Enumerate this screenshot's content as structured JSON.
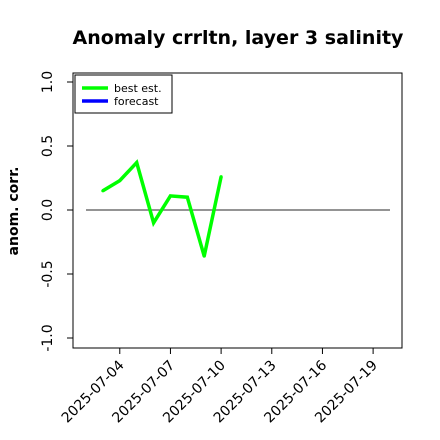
{
  "chart_data": {
    "type": "line",
    "title": "Anomaly crrltn, layer 3 salinity",
    "ylabel": "anom. corr.",
    "xlabel": "",
    "ylim": [
      -1.0,
      1.0
    ],
    "yticks": [
      -1.0,
      -0.5,
      0.0,
      0.5,
      1.0
    ],
    "ytick_labels": [
      "-1.0",
      "-0.5",
      "0.0",
      "0.5",
      "1.0"
    ],
    "xlim": [
      "2025-07-02",
      "2025-07-20"
    ],
    "xticks": [
      "2025-07-04",
      "2025-07-07",
      "2025-07-10",
      "2025-07-13",
      "2025-07-16",
      "2025-07-19"
    ],
    "xtick_labels": [
      "2025-07-04",
      "2025-07-07",
      "2025-07-10",
      "2025-07-13",
      "2025-07-16",
      "2025-07-19"
    ],
    "highlighted_xtick": "2025-07-10",
    "zero_line": true,
    "grid": false,
    "legend_position": "upper-left",
    "series": [
      {
        "name": "best est.",
        "color": "#00ff00",
        "x": [
          "2025-07-03",
          "2025-07-04",
          "2025-07-05",
          "2025-07-06",
          "2025-07-07",
          "2025-07-08",
          "2025-07-09",
          "2025-07-10"
        ],
        "y": [
          0.15,
          0.23,
          0.37,
          -0.1,
          0.11,
          0.1,
          -0.36,
          0.26
        ]
      },
      {
        "name": "forecast",
        "color": "#0000ff",
        "x": [],
        "y": []
      }
    ],
    "colors": {
      "zero_line": "#555555",
      "highlight_tick": "#228b22",
      "axes": "#000000"
    }
  }
}
